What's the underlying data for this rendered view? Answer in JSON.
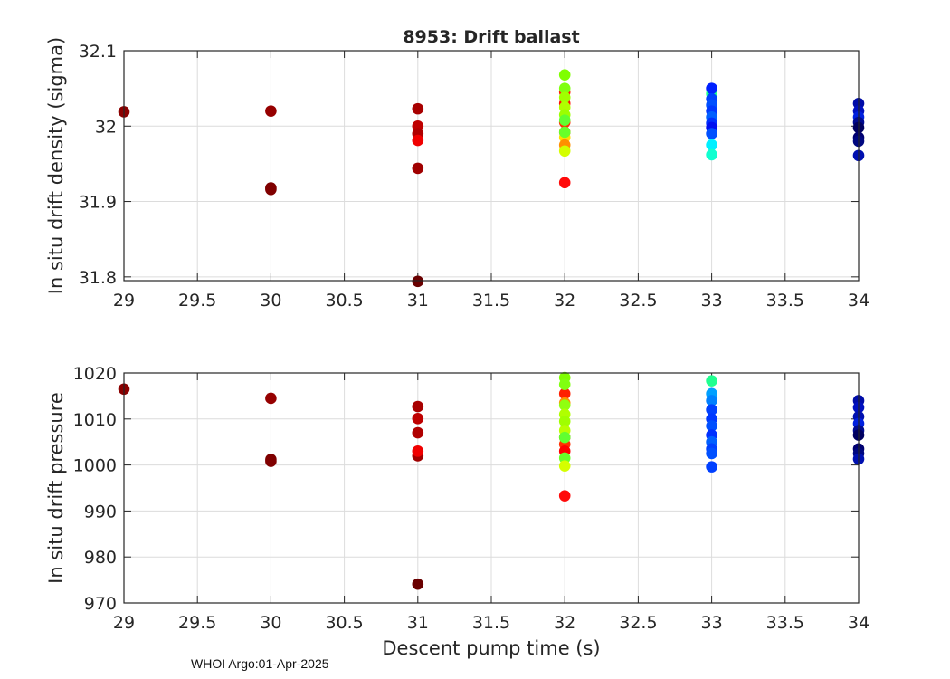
{
  "figure": {
    "title": "8953: Drift ballast",
    "footer": "WHOI Argo:01-Apr-2025",
    "grid_color": "#dcdcdc",
    "axis_color": "#262626"
  },
  "chart_data": [
    {
      "type": "scatter",
      "title": "8953: Drift ballast",
      "xlabel": "",
      "ylabel": "In situ drift density (sigma)",
      "xlim": [
        29,
        34
      ],
      "ylim": [
        31.795,
        32.1
      ],
      "xticks": [
        29,
        29.5,
        30,
        30.5,
        31,
        31.5,
        32,
        32.5,
        33,
        33.5,
        34
      ],
      "xtick_labels": [
        "29",
        "29.5",
        "30",
        "30.5",
        "31",
        "31.5",
        "32",
        "32.5",
        "33",
        "33.5",
        "34"
      ],
      "yticks": [
        31.8,
        31.9,
        32,
        32.1
      ],
      "ytick_labels": [
        "31.8",
        "31.9",
        "32",
        "32.1"
      ],
      "grid": true,
      "legend": null,
      "colormap": "jet (by profile/cycle number)",
      "points": [
        {
          "x": 29,
          "y": 32.019,
          "color": "#8b0000"
        },
        {
          "x": 30,
          "y": 32.02,
          "color": "#960000"
        },
        {
          "x": 30,
          "y": 31.918,
          "color": "#7d0000"
        },
        {
          "x": 30,
          "y": 31.916,
          "color": "#800000"
        },
        {
          "x": 31,
          "y": 32.023,
          "color": "#a80000"
        },
        {
          "x": 31,
          "y": 32.0,
          "color": "#bf0000"
        },
        {
          "x": 31,
          "y": 31.99,
          "color": "#b00000"
        },
        {
          "x": 31,
          "y": 31.981,
          "color": "#f00000"
        },
        {
          "x": 31,
          "y": 31.944,
          "color": "#a00000"
        },
        {
          "x": 31,
          "y": 31.794,
          "color": "#6a0000"
        },
        {
          "x": 32,
          "y": 32.045,
          "color": "#ff2000"
        },
        {
          "x": 32,
          "y": 32.03,
          "color": "#ff1000"
        },
        {
          "x": 32,
          "y": 32.005,
          "color": "#ff3000"
        },
        {
          "x": 32,
          "y": 31.992,
          "color": "#ff0000"
        },
        {
          "x": 32,
          "y": 31.985,
          "color": "#ffe000"
        },
        {
          "x": 32,
          "y": 31.975,
          "color": "#ff9000"
        },
        {
          "x": 32,
          "y": 32.068,
          "color": "#7fff00"
        },
        {
          "x": 32,
          "y": 32.05,
          "color": "#80ff10"
        },
        {
          "x": 32,
          "y": 32.038,
          "color": "#a0ff00"
        },
        {
          "x": 32,
          "y": 32.025,
          "color": "#b0ff00"
        },
        {
          "x": 32,
          "y": 32.015,
          "color": "#9cff00"
        },
        {
          "x": 32,
          "y": 32.008,
          "color": "#60ff30"
        },
        {
          "x": 32,
          "y": 31.992,
          "color": "#68ff28"
        },
        {
          "x": 32,
          "y": 31.967,
          "color": "#d4ff00"
        },
        {
          "x": 32,
          "y": 31.925,
          "color": "#ff0a0a"
        },
        {
          "x": 33,
          "y": 32.043,
          "color": "#20ff90"
        },
        {
          "x": 33,
          "y": 32.05,
          "color": "#0020ff"
        },
        {
          "x": 33,
          "y": 32.036,
          "color": "#0040ff"
        },
        {
          "x": 33,
          "y": 32.028,
          "color": "#0050ff"
        },
        {
          "x": 33,
          "y": 32.02,
          "color": "#0038ff"
        },
        {
          "x": 33,
          "y": 32.012,
          "color": "#0060ff"
        },
        {
          "x": 33,
          "y": 32.004,
          "color": "#0030ff"
        },
        {
          "x": 33,
          "y": 31.998,
          "color": "#0010f0"
        },
        {
          "x": 33,
          "y": 31.99,
          "color": "#0050ff"
        },
        {
          "x": 33,
          "y": 31.975,
          "color": "#00f0ff"
        },
        {
          "x": 33,
          "y": 31.962,
          "color": "#10ffd0"
        },
        {
          "x": 34,
          "y": 32.03,
          "color": "#000ca8"
        },
        {
          "x": 34,
          "y": 32.02,
          "color": "#0010c0"
        },
        {
          "x": 34,
          "y": 32.012,
          "color": "#0020e0"
        },
        {
          "x": 34,
          "y": 32.005,
          "color": "#000a90"
        },
        {
          "x": 34,
          "y": 31.998,
          "color": "#000060"
        },
        {
          "x": 34,
          "y": 31.985,
          "color": "#000070"
        },
        {
          "x": 34,
          "y": 31.98,
          "color": "#000880"
        },
        {
          "x": 34,
          "y": 31.961,
          "color": "#0010b0"
        }
      ]
    },
    {
      "type": "scatter",
      "title": "",
      "xlabel": "Descent pump time (s)",
      "ylabel": "In situ drift pressure",
      "xlim": [
        29,
        34
      ],
      "ylim": [
        970,
        1020
      ],
      "xticks": [
        29,
        29.5,
        30,
        30.5,
        31,
        31.5,
        32,
        32.5,
        33,
        33.5,
        34
      ],
      "xtick_labels": [
        "29",
        "29.5",
        "30",
        "30.5",
        "31",
        "31.5",
        "32",
        "32.5",
        "33",
        "33.5",
        "34"
      ],
      "yticks": [
        970,
        980,
        990,
        1000,
        1010,
        1020
      ],
      "ytick_labels": [
        "970",
        "980",
        "990",
        "1000",
        "1010",
        "1020"
      ],
      "grid": true,
      "legend": null,
      "colormap": "jet (by profile/cycle number)",
      "points": [
        {
          "x": 29,
          "y": 1016.5,
          "color": "#8b0000"
        },
        {
          "x": 30,
          "y": 1014.5,
          "color": "#960000"
        },
        {
          "x": 30,
          "y": 1001.2,
          "color": "#7d0000"
        },
        {
          "x": 30,
          "y": 1000.8,
          "color": "#800000"
        },
        {
          "x": 31,
          "y": 1012.7,
          "color": "#a80000"
        },
        {
          "x": 31,
          "y": 1010.1,
          "color": "#bf0000"
        },
        {
          "x": 31,
          "y": 1007.0,
          "color": "#b00000"
        },
        {
          "x": 31,
          "y": 1002.0,
          "color": "#a00000"
        },
        {
          "x": 31,
          "y": 1003.0,
          "color": "#f00000"
        },
        {
          "x": 31,
          "y": 974.1,
          "color": "#6a0000"
        },
        {
          "x": 32,
          "y": 1015.5,
          "color": "#ff2000"
        },
        {
          "x": 32,
          "y": 1013.5,
          "color": "#ff9000"
        },
        {
          "x": 32,
          "y": 1006.0,
          "color": "#ff1000"
        },
        {
          "x": 32,
          "y": 1004.5,
          "color": "#ff3000"
        },
        {
          "x": 32,
          "y": 1003.0,
          "color": "#ff0000"
        },
        {
          "x": 32,
          "y": 1019.0,
          "color": "#7fff00"
        },
        {
          "x": 32,
          "y": 1017.5,
          "color": "#80ff10"
        },
        {
          "x": 32,
          "y": 1013.0,
          "color": "#90ff10"
        },
        {
          "x": 32,
          "y": 1011.0,
          "color": "#b0ff00"
        },
        {
          "x": 32,
          "y": 1009.5,
          "color": "#a0ff00"
        },
        {
          "x": 32,
          "y": 1007.5,
          "color": "#b8ff00"
        },
        {
          "x": 32,
          "y": 1006.0,
          "color": "#60ff30"
        },
        {
          "x": 32,
          "y": 1001.5,
          "color": "#68ff28"
        },
        {
          "x": 32,
          "y": 999.8,
          "color": "#d4ff00"
        },
        {
          "x": 32,
          "y": 993.3,
          "color": "#ff0a0a"
        },
        {
          "x": 33,
          "y": 1018.3,
          "color": "#20ff90"
        },
        {
          "x": 33,
          "y": 1015.5,
          "color": "#00a0ff"
        },
        {
          "x": 33,
          "y": 1014.0,
          "color": "#0080ff"
        },
        {
          "x": 33,
          "y": 1012.0,
          "color": "#0040ff"
        },
        {
          "x": 33,
          "y": 1010.0,
          "color": "#0038ff"
        },
        {
          "x": 33,
          "y": 1008.5,
          "color": "#0050ff"
        },
        {
          "x": 33,
          "y": 1006.5,
          "color": "#0030ff"
        },
        {
          "x": 33,
          "y": 1005.0,
          "color": "#0060ff"
        },
        {
          "x": 33,
          "y": 1003.5,
          "color": "#0040ff"
        },
        {
          "x": 33,
          "y": 1002.5,
          "color": "#0050ff"
        },
        {
          "x": 33,
          "y": 999.6,
          "color": "#0040ff"
        },
        {
          "x": 34,
          "y": 1014.0,
          "color": "#000ca8"
        },
        {
          "x": 34,
          "y": 1012.5,
          "color": "#0010c0"
        },
        {
          "x": 34,
          "y": 1010.5,
          "color": "#0010b0"
        },
        {
          "x": 34,
          "y": 1009.0,
          "color": "#0020e0"
        },
        {
          "x": 34,
          "y": 1007.5,
          "color": "#000a90"
        },
        {
          "x": 34,
          "y": 1006.5,
          "color": "#000060"
        },
        {
          "x": 34,
          "y": 1003.5,
          "color": "#000070"
        },
        {
          "x": 34,
          "y": 1002.5,
          "color": "#000880"
        },
        {
          "x": 34,
          "y": 1001.3,
          "color": "#0010b0"
        }
      ]
    }
  ]
}
